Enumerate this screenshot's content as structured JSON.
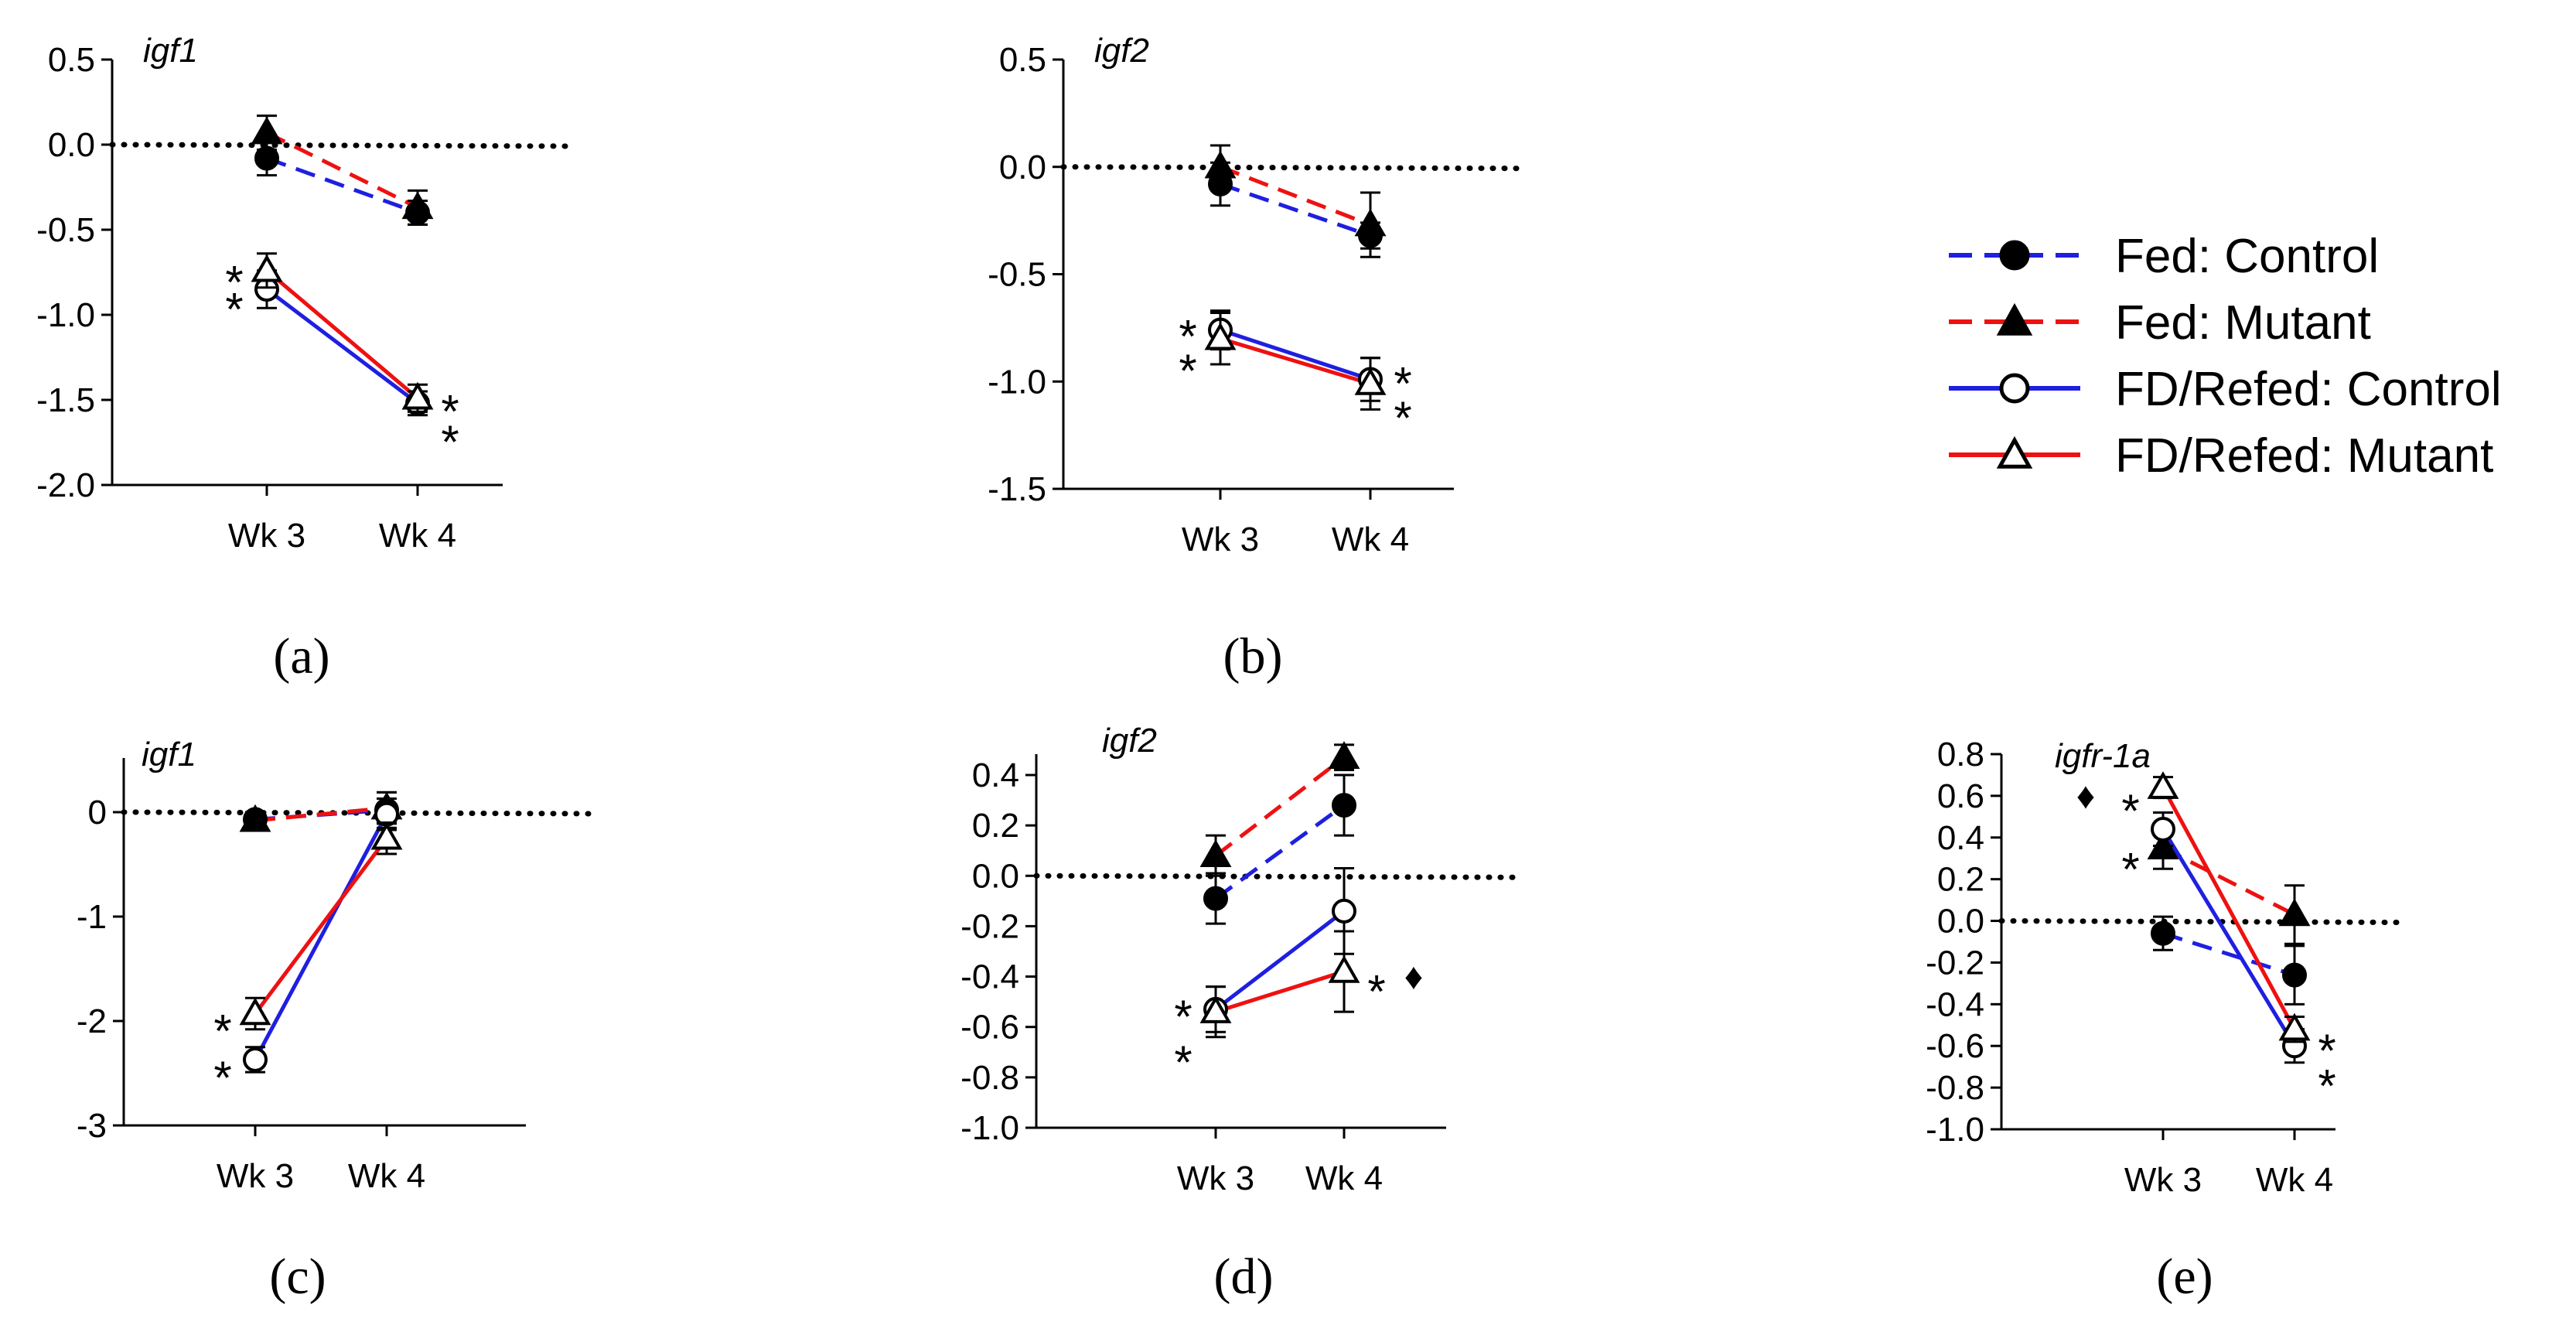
{
  "figure": {
    "panel_letters": [
      "(a)",
      "(b)",
      "(c)",
      "(d)",
      "(e)"
    ]
  },
  "legend": {
    "entries": [
      {
        "label": "Fed: Control",
        "color": "#1f1fe0",
        "dashed": true,
        "marker": "circle",
        "filled": true
      },
      {
        "label": "Fed: Mutant",
        "color": "#ee1111",
        "dashed": true,
        "marker": "triangle",
        "filled": true
      },
      {
        "label": "FD/Refed: Control",
        "color": "#1f1fe0",
        "dashed": false,
        "marker": "circle",
        "filled": false
      },
      {
        "label": "FD/Refed: Mutant",
        "color": "#ee1111",
        "dashed": false,
        "marker": "triangle",
        "filled": false
      }
    ]
  },
  "chart_data": [
    {
      "type": "line",
      "title": "igf1",
      "letter": "(a)",
      "categories": [
        "Wk 3",
        "Wk 4"
      ],
      "ylim": [
        -2.0,
        0.5
      ],
      "yticks": [
        0.5,
        0.0,
        -0.5,
        -1.0,
        -1.5,
        -2.0
      ],
      "ytick_labels": [
        "0.5",
        "0.0",
        "-0.5",
        "-1.0",
        "-1.5",
        "-2.0"
      ],
      "reference_line": 0,
      "series": [
        {
          "name": "Fed: Control",
          "values": [
            -0.08,
            -0.4
          ],
          "errors": [
            0.1,
            0.07
          ]
        },
        {
          "name": "Fed: Mutant",
          "values": [
            0.07,
            -0.37
          ],
          "errors": [
            0.1,
            0.1
          ]
        },
        {
          "name": "FD/Refed: Control",
          "values": [
            -0.85,
            -1.52
          ],
          "errors": [
            0.11,
            0.07
          ]
        },
        {
          "name": "FD/Refed: Mutant",
          "values": [
            -0.74,
            -1.49
          ],
          "errors": [
            0.1,
            0.08
          ]
        }
      ],
      "annotations": [
        {
          "text": "*",
          "x": "Wk 3",
          "y": -0.72,
          "side": "left"
        },
        {
          "text": "*",
          "x": "Wk 3",
          "y": -0.88,
          "side": "left"
        },
        {
          "text": "*",
          "x": "Wk 4",
          "y": -1.48,
          "side": "right"
        },
        {
          "text": "*",
          "x": "Wk 4",
          "y": -1.66,
          "side": "right"
        }
      ]
    },
    {
      "type": "line",
      "title": "igf2",
      "letter": "(b)",
      "categories": [
        "Wk 3",
        "Wk 4"
      ],
      "ylim": [
        -1.5,
        0.5
      ],
      "yticks": [
        0.5,
        0.0,
        -0.5,
        -1.0,
        -1.5
      ],
      "ytick_labels": [
        "0.5",
        "0.0",
        "-0.5",
        "-1.0",
        "-1.5"
      ],
      "reference_line": 0,
      "series": [
        {
          "name": "Fed: Control",
          "values": [
            -0.08,
            -0.32
          ],
          "errors": [
            0.1,
            0.06
          ]
        },
        {
          "name": "Fed: Mutant",
          "values": [
            0.0,
            -0.27
          ],
          "errors": [
            0.1,
            0.15
          ]
        },
        {
          "name": "FD/Refed: Control",
          "values": [
            -0.76,
            -0.99
          ],
          "errors": [
            0.09,
            0.1
          ]
        },
        {
          "name": "FD/Refed: Mutant",
          "values": [
            -0.8,
            -1.01
          ],
          "errors": [
            0.12,
            0.12
          ]
        }
      ],
      "annotations": [
        {
          "text": "*",
          "x": "Wk 3",
          "y": -0.72,
          "side": "left"
        },
        {
          "text": "*",
          "x": "Wk 3",
          "y": -0.88,
          "side": "left"
        },
        {
          "text": "*",
          "x": "Wk 4",
          "y": -0.94,
          "side": "right"
        },
        {
          "text": "*",
          "x": "Wk 4",
          "y": -1.1,
          "side": "right"
        }
      ]
    },
    {
      "type": "line",
      "title": "igf1",
      "letter": "(c)",
      "categories": [
        "Wk 3",
        "Wk 4"
      ],
      "ylim": [
        -3,
        0.5
      ],
      "yticks": [
        0,
        -1,
        -2,
        -3
      ],
      "ytick_labels": [
        "0",
        "-1",
        "-2",
        "-3"
      ],
      "reference_line": 0,
      "series": [
        {
          "name": "Fed: Control",
          "values": [
            -0.07,
            0.02
          ],
          "errors": [
            0.07,
            0.17
          ]
        },
        {
          "name": "Fed: Mutant",
          "values": [
            -0.08,
            0.04
          ],
          "errors": [
            0.07,
            0.15
          ]
        },
        {
          "name": "FD/Refed: Control",
          "values": [
            -2.37,
            -0.02
          ],
          "errors": [
            0.12,
            0.15
          ]
        },
        {
          "name": "FD/Refed: Mutant",
          "values": [
            -1.93,
            -0.25
          ],
          "errors": [
            0.15,
            0.15
          ]
        }
      ],
      "annotations": [
        {
          "text": "*",
          "x": "Wk 3",
          "y": -1.95,
          "side": "left"
        },
        {
          "text": "*",
          "x": "Wk 3",
          "y": -2.4,
          "side": "left"
        }
      ]
    },
    {
      "type": "line",
      "title": "igf2",
      "letter": "(d)",
      "categories": [
        "Wk 3",
        "Wk 4"
      ],
      "ylim": [
        -1.0,
        0.5
      ],
      "yticks": [
        0.4,
        0.2,
        0.0,
        -0.2,
        -0.4,
        -0.6,
        -0.8,
        -1.0
      ],
      "ytick_labels": [
        "0.4",
        "0.2",
        "0.0",
        "-0.2",
        "-0.4",
        "-0.6",
        "-0.8",
        "-1.0"
      ],
      "reference_line": 0,
      "series": [
        {
          "name": "Fed: Control",
          "values": [
            -0.09,
            0.28
          ],
          "errors": [
            0.1,
            0.12
          ]
        },
        {
          "name": "Fed: Mutant",
          "values": [
            0.08,
            0.47
          ],
          "errors": [
            0.08,
            0.05
          ]
        },
        {
          "name": "FD/Refed: Control",
          "values": [
            -0.53,
            -0.14
          ],
          "errors": [
            0.09,
            0.17
          ]
        },
        {
          "name": "FD/Refed: Mutant",
          "values": [
            -0.54,
            -0.38
          ],
          "errors": [
            0.1,
            0.16
          ]
        }
      ],
      "annotations": [
        {
          "text": "*",
          "x": "Wk 3",
          "y": -0.5,
          "side": "left"
        },
        {
          "text": "*",
          "x": "Wk 3",
          "y": -0.68,
          "side": "left"
        },
        {
          "text": "*",
          "x": "Wk 4",
          "y": -0.4,
          "side": "right"
        },
        {
          "text": "♦",
          "x": "Wk 4",
          "y": -0.4,
          "side": "far-right"
        }
      ]
    },
    {
      "type": "line",
      "title": "igfr-1a",
      "letter": "(e)",
      "categories": [
        "Wk 3",
        "Wk 4"
      ],
      "ylim": [
        -1.0,
        0.8
      ],
      "yticks": [
        0.8,
        0.6,
        0.4,
        0.2,
        0.0,
        -0.2,
        -0.4,
        -0.6,
        -0.8,
        -1.0
      ],
      "ytick_labels": [
        "0.8",
        "0.6",
        "0.4",
        "0.2",
        "0.0",
        "-0.2",
        "-0.4",
        "-0.6",
        "-0.8",
        "-1.0"
      ],
      "reference_line": 0,
      "series": [
        {
          "name": "Fed: Control",
          "values": [
            -0.06,
            -0.26
          ],
          "errors": [
            0.08,
            0.14
          ]
        },
        {
          "name": "Fed: Mutant",
          "values": [
            0.35,
            0.03
          ],
          "errors": [
            0.1,
            0.14
          ]
        },
        {
          "name": "FD/Refed: Control",
          "values": [
            0.44,
            -0.6
          ],
          "errors": [
            0.08,
            0.08
          ]
        },
        {
          "name": "FD/Refed: Mutant",
          "values": [
            0.64,
            -0.52
          ],
          "errors": [
            0.05,
            0.06
          ]
        }
      ],
      "annotations": [
        {
          "text": "*",
          "x": "Wk 3",
          "y": 0.6,
          "side": "left"
        },
        {
          "text": "♦",
          "x": "Wk 3",
          "y": 0.6,
          "side": "far-left"
        },
        {
          "text": "*",
          "x": "Wk 3",
          "y": 0.32,
          "side": "left"
        },
        {
          "text": "*",
          "x": "Wk 4",
          "y": -0.55,
          "side": "right"
        },
        {
          "text": "*",
          "x": "Wk 4",
          "y": -0.72,
          "side": "right"
        }
      ]
    }
  ]
}
